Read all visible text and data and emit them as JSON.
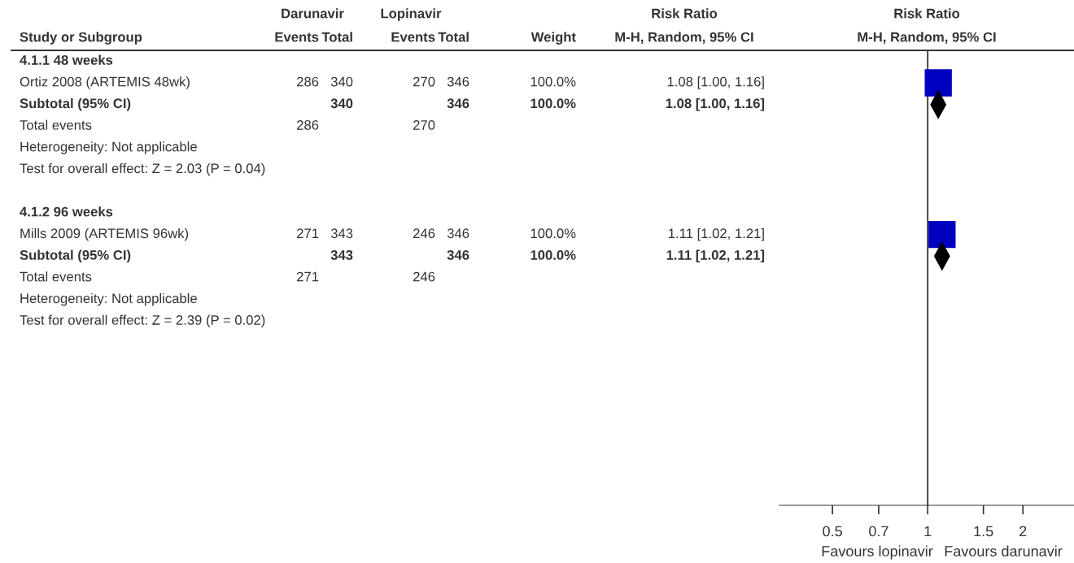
{
  "chart_data": [
    {
      "type": "other",
      "categories": [
        "Study or Subgroup",
        "Events",
        "Total",
        "Events",
        "Total",
        "Weight",
        "M-H, Random, 95% CI"
      ],
      "cell_labels": [
        [
          "4.1.1 48 weeks",
          null,
          null,
          null,
          null,
          null,
          null
        ],
        [
          "Ortiz 2008 (ARTEMIS 48wk)",
          "286",
          "340",
          "270",
          "346",
          "100.0%",
          "1.08 [1.00, 1.16]"
        ],
        [
          "Subtotal (95% CI)",
          null,
          "340",
          null,
          "346",
          "100.0%",
          "1.08 [1.00, 1.16]"
        ],
        [
          "Total events",
          "286",
          null,
          "270",
          null,
          null,
          null
        ],
        [
          "Heterogeneity: Not applicable",
          null,
          null,
          null,
          null,
          null,
          null
        ],
        [
          "Test for overall effect: Z = 2.03 (P = 0.04)",
          null,
          null,
          null,
          null,
          null,
          null
        ],
        [
          null,
          null,
          null,
          null,
          null,
          null,
          null
        ],
        [
          "4.1.2 96 weeks",
          null,
          null,
          null,
          null,
          null,
          null
        ],
        [
          "Mills 2009 (ARTEMIS 96wk)",
          "271",
          "343",
          "246",
          "346",
          "100.0%",
          "1.11 [1.02, 1.21]"
        ],
        [
          "Subtotal (95% CI)",
          null,
          "343",
          null,
          "346",
          "100.0%",
          "1.11 [1.02, 1.21]"
        ],
        [
          "Total events",
          "271",
          null,
          "246",
          null,
          null,
          null
        ],
        [
          "Heterogeneity: Not applicable",
          null,
          null,
          null,
          null,
          null,
          null
        ],
        [
          "Test for overall effect: Z = 2.39 (P = 0.02)",
          null,
          null,
          null,
          null,
          null,
          null
        ]
      ],
      "annotations": [
        "Darunavir",
        "Lopinavir",
        "Risk Ratio"
      ]
    },
    {
      "type": "scatter",
      "orientation": "horizontal",
      "log": "x",
      "xlim": [
        0.34,
        2.9
      ],
      "xticks": [
        0.5,
        0.7,
        1,
        1.5,
        2
      ],
      "title": "Risk Ratio",
      "subtitle": "M-H, Random, 95% CI",
      "categories": [
        null,
        null,
        null,
        null,
        null,
        null,
        null,
        null,
        null,
        null,
        null,
        null,
        null,
        null,
        null,
        null,
        null,
        null,
        null,
        null,
        null
      ],
      "series": [
        {
          "type": "scatter",
          "marker": "square",
          "color": "#0000c0",
          "values": [
            null,
            1.08,
            null,
            null,
            null,
            null,
            null,
            null,
            1.11,
            null,
            null,
            null,
            null,
            null,
            null,
            null,
            null,
            null,
            null,
            null,
            null
          ]
        },
        {
          "type": "scatter",
          "marker": "diamond",
          "color": "#000000",
          "values": [
            null,
            null,
            1.08,
            null,
            null,
            null,
            null,
            null,
            null,
            1.11,
            null,
            null,
            null,
            null,
            null,
            null,
            null,
            null,
            null,
            null,
            null
          ]
        }
      ],
      "ref_lines": [
        {
          "axis": "x",
          "value": 1,
          "color": "#333333"
        }
      ],
      "annotations": [
        "Favours lopinavir",
        "Favours darunavir"
      ]
    }
  ]
}
